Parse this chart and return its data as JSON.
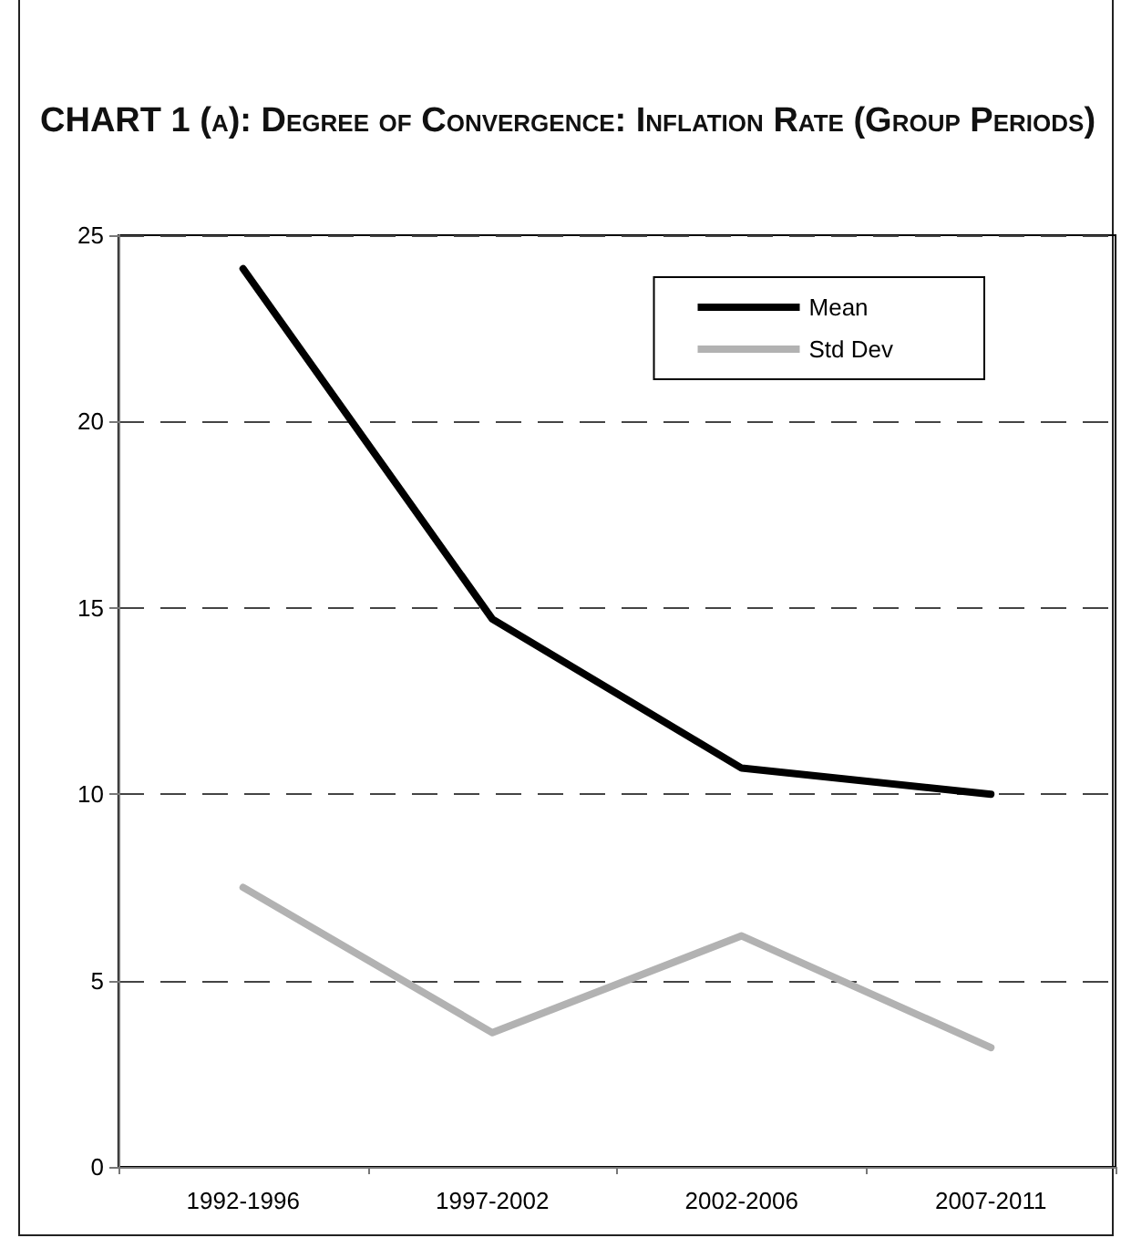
{
  "chart_data": {
    "type": "line",
    "title": "CHART 1 (a): Degree of Convergence: Inflation Rate (Group Periods)",
    "categories": [
      "1992-1996",
      "1997-2002",
      "2002-2006",
      "2007-2011"
    ],
    "series": [
      {
        "name": "Mean",
        "color": "#000000",
        "values": [
          24.1,
          14.7,
          10.7,
          10.0
        ]
      },
      {
        "name": "Std Dev",
        "color": "#b2b2b2",
        "values": [
          7.5,
          3.6,
          6.2,
          3.2
        ]
      }
    ],
    "ylim": [
      0,
      25
    ],
    "yticks": [
      0,
      5,
      10,
      15,
      20,
      25
    ],
    "grid": "y",
    "legend": "top right",
    "marker": "none",
    "line_style": "solid"
  }
}
